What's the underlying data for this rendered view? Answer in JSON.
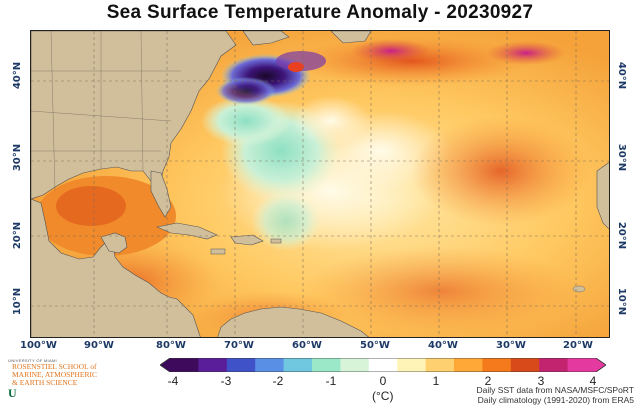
{
  "title": "Sea Surface Temperature Anomaly - 20230927",
  "map": {
    "lat_labels_left": [
      "40°N",
      "30°N",
      "20°N",
      "10°N"
    ],
    "lat_labels_right": [
      "40°N",
      "30°N",
      "20°N",
      "10°N"
    ],
    "lon_labels": [
      "100°W",
      "90°W",
      "80°W",
      "70°W",
      "60°W",
      "50°W",
      "40°W",
      "30°W",
      "20°W"
    ],
    "land_color": "#d1bf9c",
    "grid_color": "#7a6a5a"
  },
  "colorbar": {
    "ticks": [
      "-4",
      "-3",
      "-2",
      "-1",
      "0",
      "1",
      "2",
      "3",
      "4"
    ],
    "unit": "(°C)",
    "colors": [
      "#3d0a5c",
      "#5a1e9a",
      "#3f52c8",
      "#5a8fe6",
      "#6fc8e0",
      "#9ae8c8",
      "#d8f4d8",
      "#ffffff",
      "#fff4b8",
      "#ffd070",
      "#ffa838",
      "#f47a1c",
      "#d84a1a",
      "#c22470",
      "#e43aa0"
    ]
  },
  "credits": {
    "line1": "Daily SST data from NASA/MSFC/SPoRT",
    "line2": "Daily climatology (1991-2020) from ERA5"
  },
  "logo": {
    "top": "UNIVERSITY OF MIAMI",
    "line1": "ROSENSTIEL SCHOOL of",
    "line2": "MARINE, ATMOSPHERIC",
    "line3": "& EARTH SCIENCE",
    "mark": "U"
  }
}
